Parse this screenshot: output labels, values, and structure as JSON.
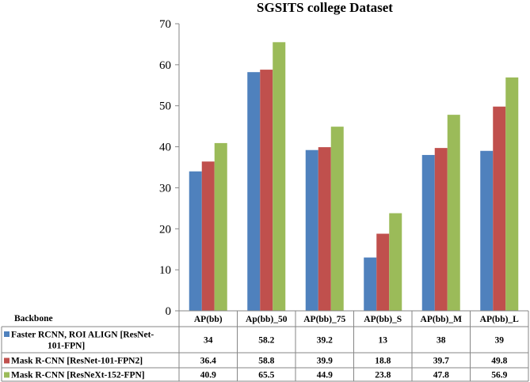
{
  "chart_data": {
    "type": "bar",
    "title": "SGSITS  college Dataset",
    "table_header": "Backbone",
    "categories": [
      "AP(bb)",
      "Ap(bb)_50",
      "AP(bb)_75",
      "AP(bb)_S",
      "AP(bb)_M",
      "AP(bb)_L"
    ],
    "series": [
      {
        "name": "Faster RCNN, ROI ALIGN [ResNet-101-FPN]",
        "label_lines": [
          "Faster RCNN, ROI ALIGN [ResNet-",
          "101-FPN]"
        ],
        "color": "#4F81BD",
        "values": [
          34,
          58.2,
          39.2,
          13,
          38,
          39
        ]
      },
      {
        "name": "Mask R-CNN [ResNet-101-FPN2]",
        "label_lines": [
          "Mask R-CNN [ResNet-101-FPN2]"
        ],
        "color": "#C0504D",
        "values": [
          36.4,
          58.8,
          39.9,
          18.8,
          39.7,
          49.8
        ]
      },
      {
        "name": "Mask R-CNN [ResNeXt-152-FPN]",
        "label_lines": [
          "Mask R-CNN [ResNeXt-152-FPN]"
        ],
        "color": "#9BBB59",
        "values": [
          40.9,
          65.5,
          44.9,
          23.8,
          47.8,
          56.9
        ]
      }
    ],
    "ylim": [
      0,
      70
    ],
    "yticks": [
      0,
      10,
      20,
      30,
      40,
      50,
      60,
      70
    ],
    "grid": false,
    "legend": "data-table"
  }
}
